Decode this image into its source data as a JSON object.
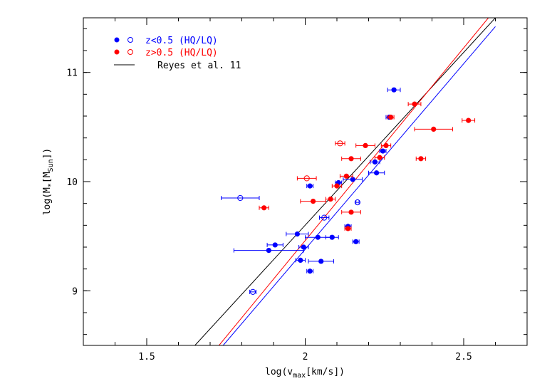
{
  "chart_data": {
    "type": "scatter",
    "title": "",
    "xlabel": "log(v_max[km/s])",
    "xlabel_main": "log(v",
    "xlabel_sub": "max",
    "xlabel_tail": "[km/s])",
    "ylabel": "log(M*[M_Sun])",
    "ylabel_a": "log(M",
    "ylabel_star": "*",
    "ylabel_b": "[M",
    "ylabel_sub": "Sun",
    "ylabel_c": "])",
    "xlim": [
      1.3,
      2.7
    ],
    "ylim": [
      8.5,
      11.5
    ],
    "xticks": [
      1.5,
      2,
      2.5
    ],
    "xtick_labels": [
      "1.5",
      "2",
      "2.5"
    ],
    "yticks": [
      9,
      10,
      11
    ],
    "ytick_labels": [
      "9",
      "10",
      "11"
    ],
    "x_minor_step": 0.1,
    "y_minor_step": 0.2,
    "legend_position": "top-left",
    "legend": [
      {
        "label": "z<0.5 (HQ/LQ)",
        "color": "#0000ff",
        "marker": "filled-open-circle"
      },
      {
        "label": "z>0.5 (HQ/LQ)",
        "color": "#ff0000",
        "marker": "filled-open-circle"
      },
      {
        "label": "Reyes et al. 11",
        "color": "#000000",
        "marker": "line"
      }
    ],
    "lines": [
      {
        "name": "Reyes et al. 11",
        "color": "#000000",
        "x": [
          1.652,
          2.6
        ],
        "y": [
          8.5,
          11.5
        ]
      },
      {
        "name": "z>0.5 fit",
        "color": "#ff0000",
        "x": [
          1.728,
          2.578
        ],
        "y": [
          8.5,
          11.5
        ]
      },
      {
        "name": "z<0.5 fit",
        "color": "#0000ff",
        "x": [
          1.741,
          2.6
        ],
        "y": [
          8.5,
          11.42
        ]
      }
    ],
    "series": [
      {
        "name": "z<0.5 HQ",
        "color": "#0000ff",
        "filled": true,
        "points": [
          {
            "x": 2.28,
            "y": 10.84,
            "xerr": 0.02
          },
          {
            "x": 2.265,
            "y": 10.59,
            "xerr": 0.01
          },
          {
            "x": 2.245,
            "y": 10.28,
            "xerr": 0.01
          },
          {
            "x": 2.22,
            "y": 10.18,
            "xerr": 0.015
          },
          {
            "x": 2.225,
            "y": 10.08,
            "xerr": 0.025
          },
          {
            "x": 2.105,
            "y": 9.99,
            "xerr": 0.01
          },
          {
            "x": 2.15,
            "y": 10.02,
            "xerr": 0.03
          },
          {
            "x": 2.015,
            "y": 9.96,
            "xerr": 0.01
          },
          {
            "x": 2.135,
            "y": 9.59,
            "xerr": 0.01
          },
          {
            "x": 1.975,
            "y": 9.52,
            "xerr": 0.035
          },
          {
            "x": 2.04,
            "y": 9.49,
            "xerr": 0.04
          },
          {
            "x": 2.085,
            "y": 9.49,
            "xerr": 0.02
          },
          {
            "x": 2.16,
            "y": 9.45,
            "xerr": 0.01
          },
          {
            "x": 1.905,
            "y": 9.42,
            "xerr": 0.025
          },
          {
            "x": 1.995,
            "y": 9.4,
            "xerr": 0.015
          },
          {
            "x": 1.885,
            "y": 9.37,
            "xerr": 0.11
          },
          {
            "x": 1.985,
            "y": 9.28,
            "xerr": 0.015
          },
          {
            "x": 2.05,
            "y": 9.27,
            "xerr": 0.04
          },
          {
            "x": 2.015,
            "y": 9.18,
            "xerr": 0.01
          }
        ]
      },
      {
        "name": "z<0.5 LQ",
        "color": "#0000ff",
        "filled": false,
        "points": [
          {
            "x": 1.795,
            "y": 9.85,
            "xerr": 0.06
          },
          {
            "x": 2.06,
            "y": 9.67,
            "xerr": 0.015
          },
          {
            "x": 2.165,
            "y": 9.81,
            "xerr": 0.005
          },
          {
            "x": 1.835,
            "y": 8.99,
            "xerr": 0.01
          }
        ]
      },
      {
        "name": "z>0.5 HQ",
        "color": "#ff0000",
        "filled": true,
        "points": [
          {
            "x": 2.345,
            "y": 10.71,
            "xerr": 0.02
          },
          {
            "x": 2.27,
            "y": 10.59,
            "xerr": 0.01
          },
          {
            "x": 2.515,
            "y": 10.56,
            "xerr": 0.02
          },
          {
            "x": 2.405,
            "y": 10.48,
            "xerr": 0.06
          },
          {
            "x": 2.19,
            "y": 10.33,
            "xerr": 0.03
          },
          {
            "x": 2.255,
            "y": 10.33,
            "xerr": 0.015
          },
          {
            "x": 2.145,
            "y": 10.21,
            "xerr": 0.03
          },
          {
            "x": 2.235,
            "y": 10.22,
            "xerr": 0.015
          },
          {
            "x": 2.365,
            "y": 10.21,
            "xerr": 0.015
          },
          {
            "x": 2.13,
            "y": 10.05,
            "xerr": 0.02
          },
          {
            "x": 2.1,
            "y": 9.96,
            "xerr": 0.015
          },
          {
            "x": 2.025,
            "y": 9.82,
            "xerr": 0.04
          },
          {
            "x": 2.08,
            "y": 9.84,
            "xerr": 0.015
          },
          {
            "x": 1.87,
            "y": 9.76,
            "xerr": 0.015
          },
          {
            "x": 2.145,
            "y": 9.72,
            "xerr": 0.03
          },
          {
            "x": 2.135,
            "y": 9.57,
            "xerr": 0.01
          }
        ]
      },
      {
        "name": "z>0.5 LQ",
        "color": "#ff0000",
        "filled": false,
        "points": [
          {
            "x": 2.11,
            "y": 10.35,
            "xerr": 0.015
          },
          {
            "x": 2.005,
            "y": 10.03,
            "xerr": 0.03
          }
        ]
      }
    ]
  }
}
